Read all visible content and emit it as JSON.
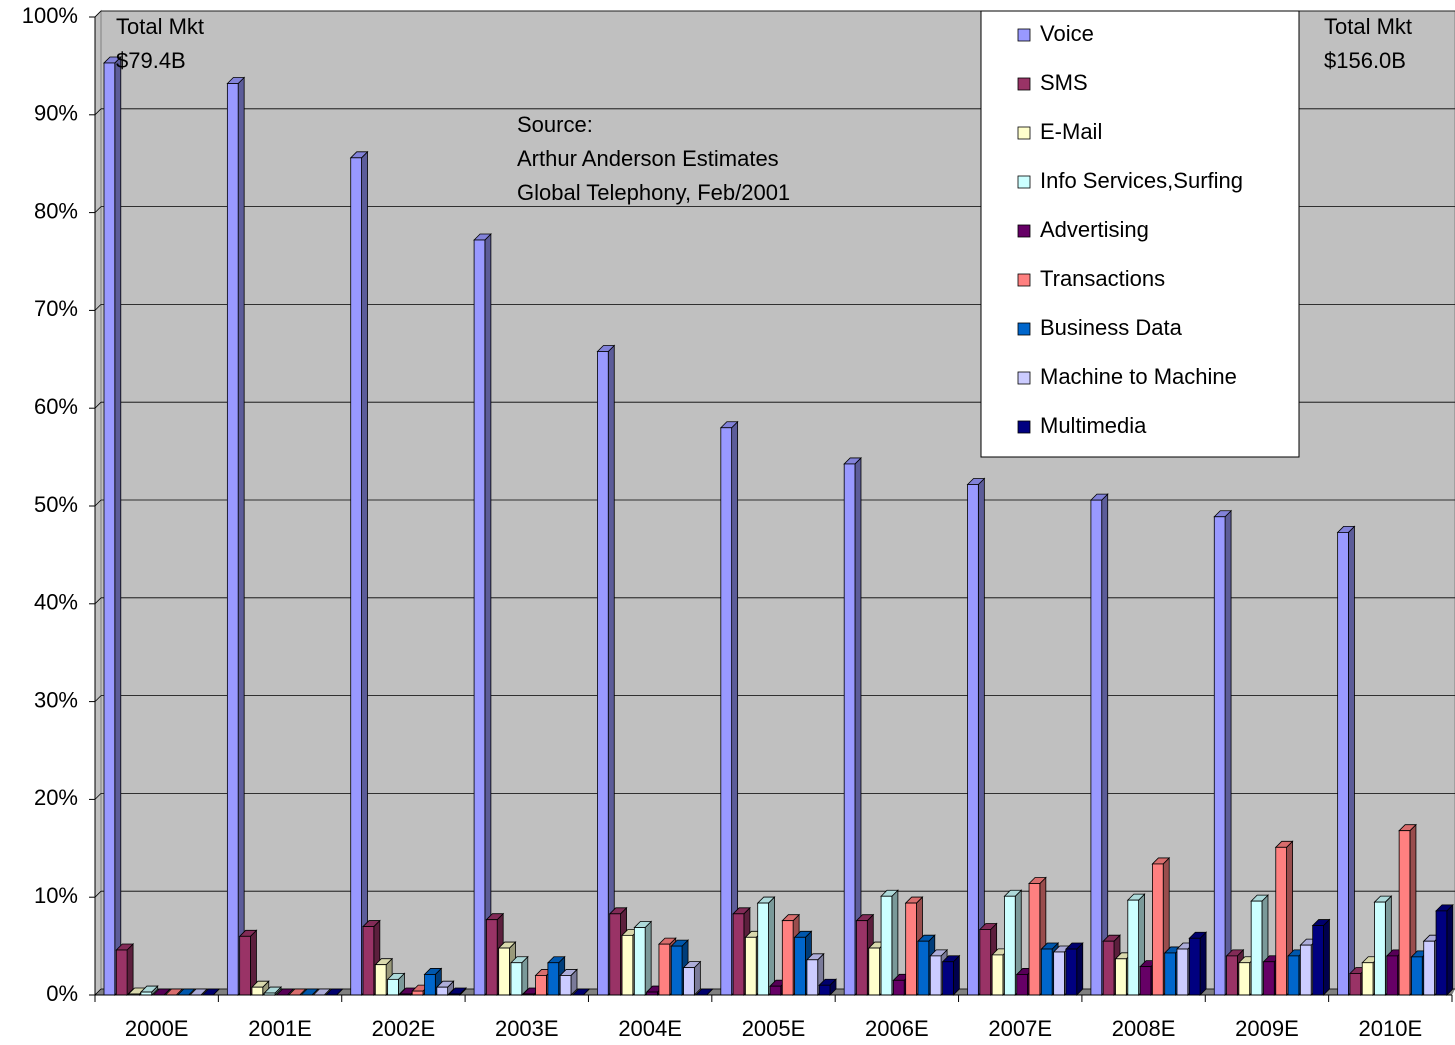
{
  "chart_data": {
    "type": "bar3d",
    "categories": [
      "2000E",
      "2001E",
      "2002E",
      "2003E",
      "2004E",
      "2005E",
      "2006E",
      "2007E",
      "2008E",
      "2009E",
      "2010E"
    ],
    "series": [
      {
        "name": "Voice",
        "color": "#9999ff",
        "values": [
          95.3,
          93.2,
          85.6,
          77.2,
          65.8,
          58.0,
          54.3,
          52.2,
          50.6,
          48.9,
          47.3
        ]
      },
      {
        "name": "SMS",
        "color": "#993366",
        "values": [
          4.6,
          6.0,
          7.0,
          7.7,
          8.3,
          8.3,
          7.6,
          6.7,
          5.5,
          4.0,
          2.2
        ]
      },
      {
        "name": "E-Mail",
        "color": "#ffffcc",
        "values": [
          0.1,
          0.8,
          3.1,
          4.8,
          6.1,
          5.9,
          4.8,
          4.1,
          3.7,
          3.3,
          3.3
        ]
      },
      {
        "name": "Info Services,Surfing",
        "color": "#ccffff",
        "values": [
          0.3,
          0.2,
          1.6,
          3.3,
          6.9,
          9.4,
          10.1,
          10.1,
          9.7,
          9.6,
          9.5
        ]
      },
      {
        "name": "Advertising",
        "color": "#660066",
        "values": [
          0,
          0,
          0.1,
          0.1,
          0.3,
          0.9,
          1.5,
          2.1,
          2.9,
          3.4,
          4.0
        ]
      },
      {
        "name": "Transactions",
        "color": "#ff8080",
        "values": [
          0,
          0,
          0.4,
          2.0,
          5.2,
          7.6,
          9.4,
          11.4,
          13.4,
          15.1,
          16.8
        ]
      },
      {
        "name": "Business Data",
        "color": "#0066cc",
        "values": [
          0,
          0,
          2.1,
          3.3,
          5.0,
          5.9,
          5.5,
          4.7,
          4.3,
          4.0,
          3.9
        ]
      },
      {
        "name": "Machine to Machine",
        "color": "#ccccff",
        "values": [
          0,
          0,
          0.8,
          2.0,
          2.8,
          3.6,
          4.0,
          4.4,
          4.7,
          5.1,
          5.5
        ]
      },
      {
        "name": "Multimedia",
        "color": "#000080",
        "values": [
          0,
          0,
          0.1,
          0,
          0,
          1.0,
          3.4,
          4.7,
          5.8,
          7.1,
          8.6
        ]
      }
    ],
    "ylim": [
      0,
      100
    ],
    "yticks": [
      {
        "value": 0,
        "label": "0%"
      },
      {
        "value": 10,
        "label": "10%"
      },
      {
        "value": 20,
        "label": "20%"
      },
      {
        "value": 30,
        "label": "30%"
      },
      {
        "value": 40,
        "label": "40%"
      },
      {
        "value": 50,
        "label": "50%"
      },
      {
        "value": 60,
        "label": "60%"
      },
      {
        "value": 70,
        "label": "70%"
      },
      {
        "value": 80,
        "label": "80%"
      },
      {
        "value": 90,
        "label": "90%"
      },
      {
        "value": 100,
        "label": "100%"
      }
    ],
    "grid": true,
    "legend": "top-right",
    "annotations": [
      {
        "lines": [
          "Total Mkt",
          "$79.4B"
        ]
      },
      {
        "lines": [
          "Source:",
          "Arthur Anderson Estimates",
          "Global Telephony, Feb/2001"
        ]
      },
      {
        "lines": [
          "Total Mkt",
          "$156.0B"
        ]
      }
    ]
  }
}
